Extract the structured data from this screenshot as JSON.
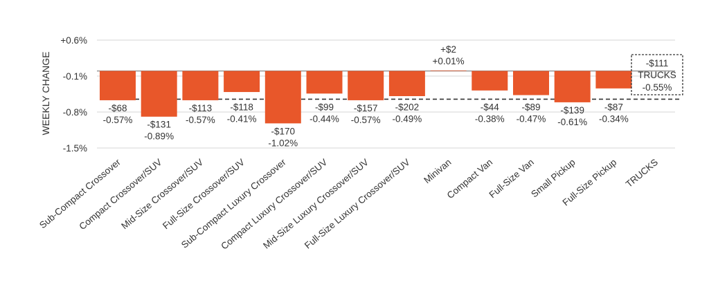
{
  "chart_data": {
    "type": "bar",
    "title": "",
    "xlabel": "",
    "ylabel": "WEEKLY CHANGE",
    "ylim": [
      -1.5,
      0.6
    ],
    "yticks": [
      "+0.6%",
      "-0.1%",
      "-0.8%",
      "-1.5%"
    ],
    "ytick_values": [
      0.6,
      -0.1,
      -0.8,
      -1.5
    ],
    "grid": true,
    "bar_color": "#E8572A",
    "categories": [
      "Sub-Compact Crossover",
      "Compact Crossover/SUV",
      "Mid-Size Crossover/SUV",
      "Full-Size Crossover/SUV",
      "Sub-Compact Luxury Crossover",
      "Compact Luxury Crossover/SUV",
      "Mid-Size Luxury Crossover/SUV",
      "Full-Size Luxury Crossover/SUV",
      "Minivan",
      "Compact Van",
      "Full-Size Van",
      "Small Pickup",
      "Full-Size Pickup",
      "TRUCKS"
    ],
    "values": [
      -0.57,
      -0.89,
      -0.57,
      -0.41,
      -1.02,
      -0.44,
      -0.57,
      -0.49,
      0.01,
      -0.38,
      -0.47,
      -0.61,
      -0.34,
      null
    ],
    "dollar_labels": [
      "-$68",
      "-$131",
      "-$113",
      "-$118",
      "-$170",
      "-$99",
      "-$157",
      "-$202",
      "+$2",
      "-$44",
      "-$89",
      "-$139",
      "-$87",
      ""
    ],
    "percent_labels": [
      "-0.57%",
      "-0.89%",
      "-0.57%",
      "-0.41%",
      "-1.02%",
      "-0.44%",
      "-0.57%",
      "-0.49%",
      "+0.01%",
      "-0.38%",
      "-0.47%",
      "-0.61%",
      "-0.34%",
      ""
    ],
    "reference_line": {
      "value": -0.55,
      "style": "dashed"
    },
    "summary_box": {
      "dollar": "-$111",
      "label": "TRUCKS",
      "percent": "-0.55%"
    }
  }
}
